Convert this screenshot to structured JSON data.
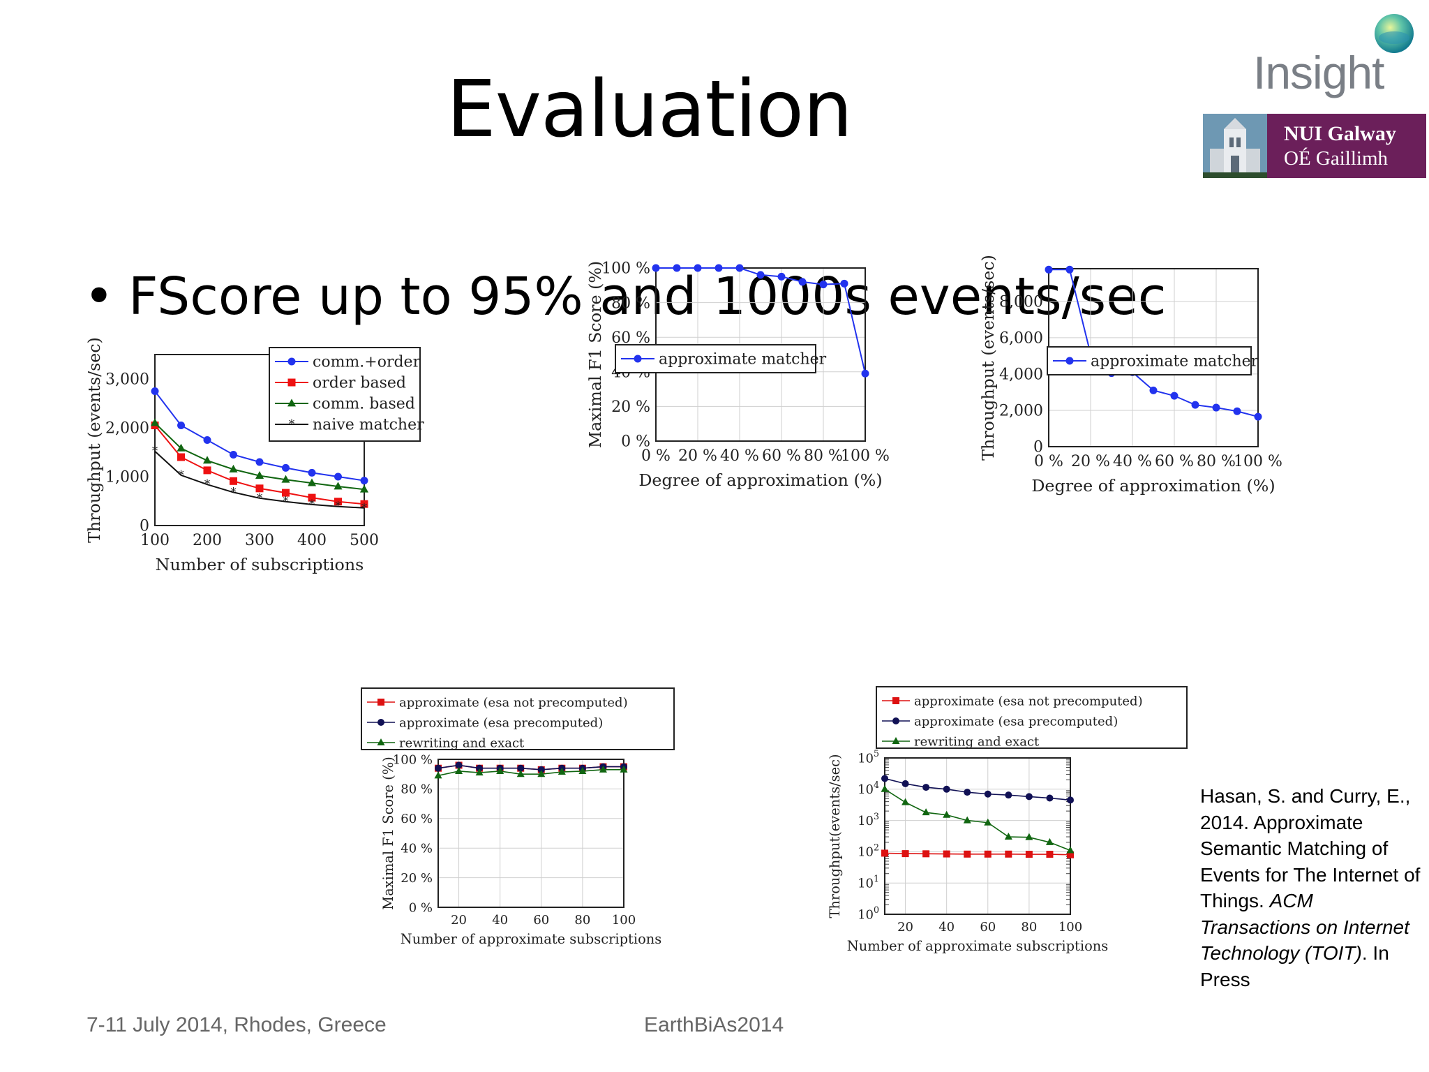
{
  "slide": {
    "title": "Evaluation",
    "bullet_marker": "•",
    "bullet": "FScore up to 95% and 1000s events/sec"
  },
  "citation": {
    "text": "Hasan, S. and Curry, E., 2014. Approximate Semantic Matching of Events for The Internet of Things.",
    "journal": "ACM Transactions on Internet Technology (TOIT)",
    "suffix": ". In Press"
  },
  "footer": {
    "left": "7-11 July 2014, Rhodes, Greece",
    "center": "EarthBiAs2014"
  },
  "logos": {
    "insight": "Insight",
    "university_line1": "NUI Galway",
    "university_line2": "OÉ Gaillimh"
  },
  "chart_data": [
    {
      "type": "line",
      "xlabel": "Number of subscriptions",
      "ylabel": "Throughput (events/sec)",
      "xlim": [
        100,
        500
      ],
      "ylim": [
        0,
        3500
      ],
      "xticks": [
        100,
        200,
        300,
        400,
        500
      ],
      "yticks": [
        0,
        1000,
        2000,
        3000
      ],
      "ytick_labels": [
        "0",
        "1,000",
        "2,000",
        "3,000"
      ],
      "grid": false,
      "legend": "top-right",
      "x": [
        100,
        150,
        200,
        250,
        300,
        350,
        400,
        450,
        500
      ],
      "series": [
        {
          "name": "comm.+order",
          "color": "#2233ee",
          "marker": "circle",
          "values": [
            2750,
            2050,
            1750,
            1450,
            1300,
            1180,
            1080,
            1000,
            920
          ]
        },
        {
          "name": "order based",
          "color": "#ee1111",
          "marker": "square",
          "values": [
            2050,
            1400,
            1130,
            910,
            760,
            670,
            570,
            490,
            440
          ]
        },
        {
          "name": "comm. based",
          "color": "#116611",
          "marker": "triangle",
          "values": [
            2100,
            1580,
            1330,
            1150,
            1020,
            940,
            870,
            800,
            740
          ]
        },
        {
          "name": "naive matcher",
          "color": "#111111",
          "marker": "star",
          "values": [
            1520,
            1030,
            840,
            680,
            560,
            490,
            430,
            390,
            360
          ]
        }
      ]
    },
    {
      "type": "line",
      "xlabel": "Degree of approximation (%)",
      "ylabel": "Maximal F1 Score (%)",
      "xlim": [
        0,
        100
      ],
      "ylim": [
        0,
        100
      ],
      "xticks": [
        0,
        20,
        40,
        60,
        80,
        100
      ],
      "xtick_labels": [
        "0 %",
        "20 %",
        "40 %",
        "60 %",
        "80 %",
        "100 %"
      ],
      "yticks": [
        0,
        20,
        40,
        60,
        80,
        100
      ],
      "ytick_labels": [
        "0 %",
        "20 %",
        "40 %",
        "60 %",
        "80 %",
        "100 %"
      ],
      "grid": true,
      "legend": "bottom",
      "x": [
        0,
        10,
        20,
        30,
        40,
        50,
        60,
        70,
        80,
        90,
        100
      ],
      "series": [
        {
          "name": "approximate matcher",
          "color": "#2233ee",
          "marker": "circle",
          "values": [
            100,
            100,
            100,
            100,
            100,
            96,
            95,
            92,
            90.5,
            91,
            39
          ]
        }
      ]
    },
    {
      "type": "line",
      "xlabel": "Degree of approximation (%)",
      "ylabel": "Throughput (events/sec)",
      "xlim": [
        0,
        100
      ],
      "ylim": [
        0,
        9800
      ],
      "xticks": [
        0,
        20,
        40,
        60,
        80,
        100
      ],
      "xtick_labels": [
        "0 %",
        "20 %",
        "40 %",
        "60 %",
        "80 %",
        "100 %"
      ],
      "yticks": [
        0,
        2000,
        4000,
        6000,
        8000
      ],
      "ytick_labels": [
        "0",
        "2,000",
        "4,000",
        "6,000",
        "8,000"
      ],
      "grid": true,
      "legend": "bottom",
      "x": [
        0,
        10,
        20,
        30,
        40,
        50,
        60,
        70,
        80,
        90,
        100
      ],
      "series": [
        {
          "name": "approximate matcher",
          "color": "#2233ee",
          "marker": "circle",
          "values": [
            9750,
            9750,
            5100,
            4050,
            4100,
            3100,
            2800,
            2300,
            2150,
            1950,
            1650
          ]
        }
      ]
    },
    {
      "type": "line",
      "xlabel": "Number of approximate subscriptions",
      "ylabel": "Maximal F1 Score (%)",
      "xlim": [
        10,
        100
      ],
      "ylim": [
        0,
        100
      ],
      "xticks": [
        20,
        40,
        60,
        80,
        100
      ],
      "yticks": [
        0,
        20,
        40,
        60,
        80,
        100
      ],
      "ytick_labels": [
        "0 %",
        "20 %",
        "40 %",
        "60 %",
        "80 %",
        "100 %"
      ],
      "grid": true,
      "legend": "above",
      "x": [
        10,
        20,
        30,
        40,
        50,
        60,
        70,
        80,
        90,
        100
      ],
      "series": [
        {
          "name": "approximate (esa not precomputed)",
          "color": "#dd1111",
          "marker": "square",
          "values": [
            94,
            96,
            94,
            94,
            94,
            93,
            94,
            94,
            95,
            95
          ]
        },
        {
          "name": "approximate (esa precomputed)",
          "color": "#111155",
          "marker": "circle",
          "values": [
            94,
            96,
            94,
            94,
            94,
            93,
            94,
            94,
            95,
            95
          ]
        },
        {
          "name": "rewriting and exact",
          "color": "#116611",
          "marker": "triangle",
          "values": [
            89,
            92,
            91,
            92,
            90,
            90,
            91.5,
            92,
            93,
            93
          ]
        }
      ]
    },
    {
      "type": "line",
      "xlabel": "Number of approximate subscriptions",
      "ylabel": "Throughput(events/sec)",
      "xlim": [
        10,
        100
      ],
      "ylim": [
        1,
        100000
      ],
      "yscale": "log",
      "xticks": [
        20,
        40,
        60,
        80,
        100
      ],
      "yticks": [
        1,
        10,
        100,
        1000,
        10000,
        100000
      ],
      "ytick_exponents": [
        "0",
        "1",
        "2",
        "3",
        "4",
        "5"
      ],
      "grid": true,
      "legend": "above",
      "x": [
        10,
        20,
        30,
        40,
        50,
        60,
        70,
        80,
        90,
        100
      ],
      "series": [
        {
          "name": "approximate (esa not precomputed)",
          "color": "#dd1111",
          "marker": "square",
          "values": [
            90,
            87,
            86,
            85,
            84,
            84,
            84,
            83,
            83,
            80
          ]
        },
        {
          "name": "approximate (esa precomputed)",
          "color": "#111155",
          "marker": "circle",
          "values": [
            22000,
            15000,
            11500,
            10000,
            8000,
            7000,
            6500,
            5800,
            5200,
            4500
          ]
        },
        {
          "name": "rewriting and exact",
          "color": "#116611",
          "marker": "triangle",
          "values": [
            10000,
            3800,
            1800,
            1500,
            1000,
            850,
            300,
            290,
            200,
            110
          ]
        }
      ]
    }
  ]
}
